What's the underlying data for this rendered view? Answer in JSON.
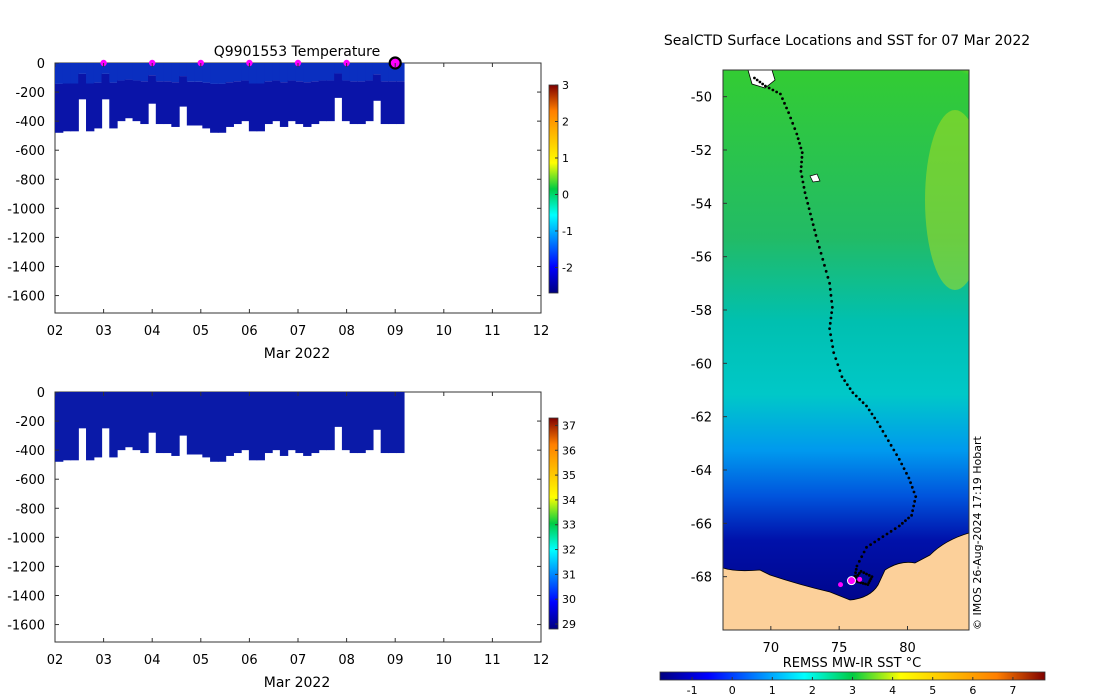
{
  "chart_data": [
    {
      "type": "heatmap",
      "panel": "temperature-profile",
      "title": "Q9901553  Temperature",
      "xlabel": "Mar 2022",
      "ylabel": "",
      "xlim": [
        2,
        12
      ],
      "ylim": [
        -1720,
        0
      ],
      "x_tick_labels": [
        "02",
        "03",
        "04",
        "05",
        "06",
        "07",
        "08",
        "09",
        "10",
        "11",
        "12"
      ],
      "y_tick_labels": [
        "0",
        "-200",
        "-400",
        "-600",
        "-800",
        "-1000",
        "-1200",
        "-1400",
        "-1600"
      ],
      "colorbar": {
        "min": -2.7,
        "max": 3,
        "ticks": [
          "3",
          "2",
          "1",
          "0",
          "-1",
          "-2"
        ]
      },
      "profile_bottom_depths": [
        -480,
        -470,
        -470,
        -250,
        -470,
        -450,
        -250,
        -450,
        -400,
        -380,
        -400,
        -420,
        -280,
        -420,
        -420,
        -440,
        -300,
        -430,
        -430,
        -450,
        -480,
        -480,
        -440,
        -420,
        -400,
        -470,
        -470,
        -420,
        -400,
        -440,
        -400,
        -420,
        -440,
        -420,
        -400,
        -400,
        -240,
        -400,
        -420,
        -420,
        -400,
        -260,
        -420,
        -420,
        -420
      ],
      "surface_markers_x": [
        3,
        4,
        5,
        6,
        7,
        8
      ],
      "last_position_marker_x": 9
    },
    {
      "type": "heatmap",
      "panel": "salinity-profile",
      "title": "",
      "xlabel": "Mar 2022",
      "ylabel": "",
      "xlim": [
        2,
        12
      ],
      "ylim": [
        -1720,
        0
      ],
      "x_tick_labels": [
        "02",
        "03",
        "04",
        "05",
        "06",
        "07",
        "08",
        "09",
        "10",
        "11",
        "12"
      ],
      "y_tick_labels": [
        "0",
        "-200",
        "-400",
        "-600",
        "-800",
        "-1000",
        "-1200",
        "-1400",
        "-1600"
      ],
      "colorbar": {
        "min": 28.8,
        "max": 37.3,
        "ticks": [
          "37",
          "36",
          "35",
          "34",
          "33",
          "32",
          "31",
          "30",
          "29"
        ]
      },
      "profile_bottom_depths": [
        -480,
        -470,
        -470,
        -250,
        -470,
        -450,
        -250,
        -450,
        -400,
        -380,
        -400,
        -420,
        -280,
        -420,
        -420,
        -440,
        -300,
        -430,
        -430,
        -450,
        -480,
        -480,
        -440,
        -420,
        -400,
        -470,
        -470,
        -420,
        -400,
        -440,
        -400,
        -420,
        -440,
        -420,
        -400,
        -400,
        -240,
        -400,
        -420,
        -420,
        -400,
        -260,
        -420,
        -420,
        -420
      ]
    },
    {
      "type": "map",
      "panel": "sst-map",
      "title": "SealCTD Surface Locations and SST for 07 Mar 2022",
      "xlim": [
        66.5,
        84.5
      ],
      "ylim": [
        -70,
        -49
      ],
      "x_tick_labels": [
        "70",
        "75",
        "80"
      ],
      "y_tick_labels": [
        "-50",
        "-52",
        "-54",
        "-56",
        "-58",
        "-60",
        "-62",
        "-64",
        "-66",
        "-68"
      ],
      "colorbar": {
        "label": "REMSS MW-IR SST °C",
        "min": -1.8,
        "max": 7.8,
        "ticks": [
          "-1",
          "0",
          "1",
          "2",
          "3",
          "4",
          "5",
          "6",
          "7"
        ]
      },
      "credit": "© IMOS 26-Aug-2024 17:19 Hobart",
      "track": [
        [
          68.8,
          -49.3
        ],
        [
          69.6,
          -49.6
        ],
        [
          70.7,
          -49.9
        ],
        [
          71.3,
          -50.6
        ],
        [
          71.9,
          -51.4
        ],
        [
          72.3,
          -52.1
        ],
        [
          72.2,
          -52.8
        ],
        [
          72.5,
          -53.6
        ],
        [
          72.9,
          -54.4
        ],
        [
          73.3,
          -55.2
        ],
        [
          73.8,
          -56.1
        ],
        [
          74.3,
          -57.0
        ],
        [
          74.5,
          -57.9
        ],
        [
          74.3,
          -58.7
        ],
        [
          74.6,
          -59.6
        ],
        [
          75.2,
          -60.5
        ],
        [
          76.0,
          -61.1
        ],
        [
          77.0,
          -61.6
        ],
        [
          77.8,
          -62.2
        ],
        [
          78.6,
          -62.9
        ],
        [
          79.4,
          -63.6
        ],
        [
          80.1,
          -64.3
        ],
        [
          80.6,
          -65.0
        ],
        [
          80.3,
          -65.7
        ],
        [
          79.4,
          -66.1
        ],
        [
          78.2,
          -66.5
        ],
        [
          77.0,
          -66.9
        ],
        [
          76.3,
          -67.6
        ],
        [
          76.1,
          -68.1
        ],
        [
          76.6,
          -67.8
        ],
        [
          77.4,
          -68.0
        ],
        [
          77.1,
          -68.3
        ],
        [
          76.4,
          -68.2
        ],
        [
          75.8,
          -68.1
        ]
      ],
      "current_position": [
        75.9,
        -68.15
      ],
      "other_positions": [
        [
          75.1,
          -68.3
        ],
        [
          76.5,
          -68.1
        ]
      ]
    }
  ]
}
